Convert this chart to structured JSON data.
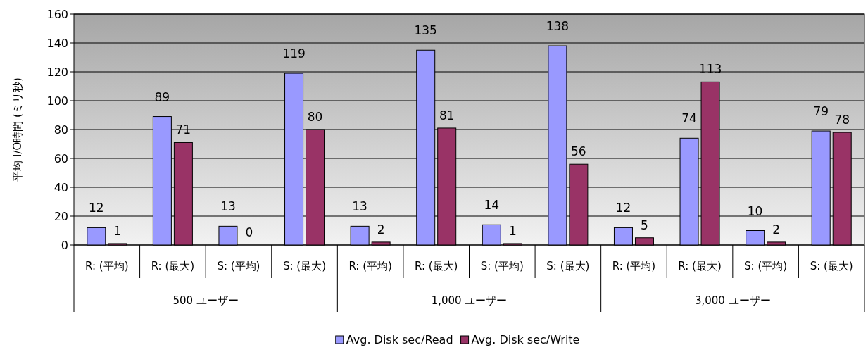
{
  "chart_data": {
    "type": "bar",
    "ylabel": "平均 I/O時間 (ミリ秒)",
    "categories": [
      "R: (平均)",
      "R: (最大)",
      "S: (平均)",
      "S: (最大)",
      "R: (平均)",
      "R: (最大)",
      "S: (平均)",
      "S: (最大)",
      "R: (平均)",
      "R: (最大)",
      "S: (平均)",
      "S: (最大)"
    ],
    "series": [
      {
        "name": "Avg. Disk sec/Read",
        "color": "#9999ff",
        "values": [
          12,
          89,
          13,
          119,
          13,
          135,
          14,
          138,
          12,
          74,
          10,
          79
        ]
      },
      {
        "name": "Avg. Disk sec/Write",
        "color": "#993366",
        "values": [
          1,
          71,
          0,
          80,
          2,
          81,
          1,
          56,
          5,
          113,
          2,
          78
        ]
      }
    ],
    "annotations": [
      "500 ユーザー",
      "1,000 ユーザー",
      "3,000 ユーザー"
    ],
    "ylim": [
      0,
      160
    ],
    "yticks": [
      0,
      20,
      40,
      60,
      80,
      100,
      120,
      140,
      160
    ],
    "grid": "y",
    "data_labels": true,
    "legend": "bottom"
  }
}
